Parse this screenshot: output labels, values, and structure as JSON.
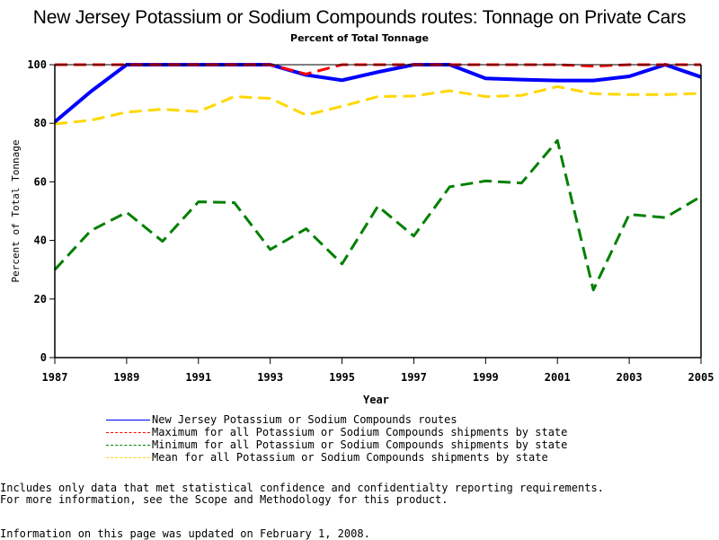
{
  "chart_data": {
    "type": "line",
    "title": "New Jersey Potassium or Sodium Compounds routes: Tonnage on Private Cars",
    "subtitle": "Percent of Total Tonnage",
    "xlabel": "Year",
    "ylabel": "Percent of Total Tonnage",
    "xlim": [
      1987,
      2005
    ],
    "ylim": [
      0,
      100
    ],
    "x_ticks": [
      "1987",
      "1989",
      "1991",
      "1993",
      "1995",
      "1997",
      "1999",
      "2001",
      "2003",
      "2005"
    ],
    "y_ticks": [
      "0",
      "20",
      "40",
      "60",
      "80",
      "100"
    ],
    "grid": false,
    "legend_position": "bottom",
    "x": [
      1987,
      1988,
      1989,
      1990,
      1991,
      1992,
      1993,
      1994,
      1995,
      1996,
      1997,
      1998,
      1999,
      2000,
      2001,
      2002,
      2003,
      2004,
      2005
    ],
    "series": [
      {
        "name": "New Jersey Potassium or Sodium Compounds routes",
        "color": "#0000ff",
        "style": "solid",
        "values": [
          80.5,
          90.8,
          100,
          100,
          100,
          100,
          100,
          96.5,
          94.7,
          97.5,
          100,
          100,
          95.3,
          94.9,
          94.6,
          94.6,
          96.0,
          100,
          95.8
        ]
      },
      {
        "name": "Maximum for all Potassium or Sodium Compounds shipments by state",
        "color": "#ff0000",
        "style": "dashed",
        "values": [
          100,
          100,
          100,
          100,
          100,
          100,
          100,
          96.8,
          100,
          100,
          100,
          100,
          100,
          100,
          100,
          99.5,
          100,
          100,
          100
        ]
      },
      {
        "name": "Minimum for all Potassium or Sodium Compounds shipments by state",
        "color": "#008000",
        "style": "dashed",
        "values": [
          30.0,
          43.3,
          49.6,
          39.7,
          53.2,
          52.9,
          36.9,
          44.0,
          32.0,
          51.7,
          41.5,
          58.3,
          60.3,
          59.6,
          74.1,
          23.1,
          48.9,
          47.8,
          55.0
        ]
      },
      {
        "name": "Mean for all Potassium or Sodium Compounds shipments by state",
        "color": "#ffd700",
        "style": "dashed",
        "values": [
          79.8,
          81.0,
          83.8,
          84.8,
          84.0,
          89.1,
          88.5,
          82.8,
          85.8,
          89.1,
          89.3,
          91.1,
          89.1,
          89.5,
          92.5,
          90.1,
          89.8,
          89.8,
          90.2
        ]
      }
    ]
  },
  "legend": {
    "items": [
      "New Jersey Potassium or Sodium Compounds routes",
      "Maximum for all Potassium or Sodium Compounds shipments by state",
      "Minimum for all Potassium or Sodium Compounds shipments by state",
      "Mean for all Potassium or Sodium Compounds shipments by state"
    ]
  },
  "footer": {
    "note_line1": "Includes only data that met statistical confidence and confidentialty reporting requirements.",
    "note_line2": "For more information, see the Scope and Methodology for this product.",
    "updated": "Information on this page was updated on February 1, 2008."
  }
}
